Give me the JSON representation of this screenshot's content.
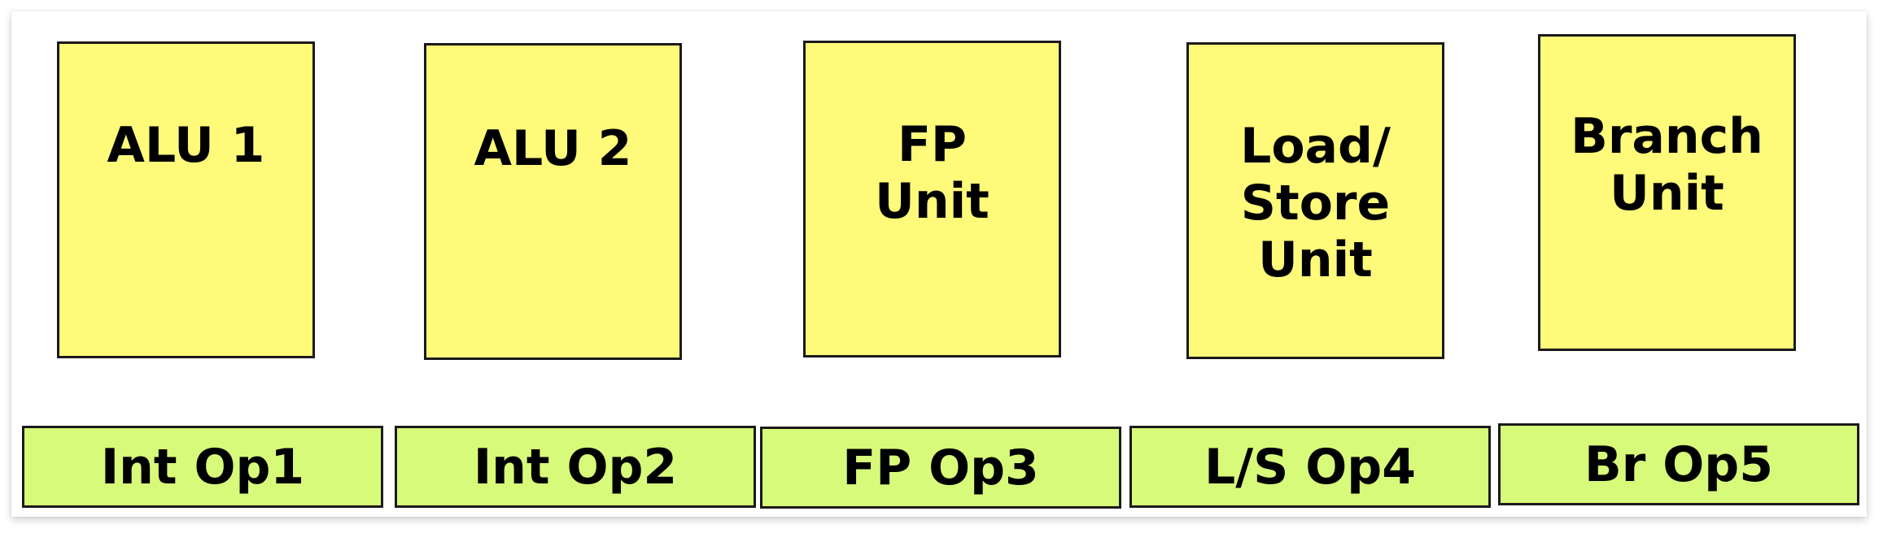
{
  "colors": {
    "unit_fill": "#fffa7a",
    "op_fill": "#d8fa7a",
    "border": "#1a1a1a",
    "text": "#000000"
  },
  "units": [
    {
      "label": "ALU 1"
    },
    {
      "label": "ALU 2"
    },
    {
      "label": "FP\nUnit"
    },
    {
      "label": "Load/\nStore\nUnit"
    },
    {
      "label": "Branch\nUnit"
    }
  ],
  "ops": [
    {
      "label": "Int Op1"
    },
    {
      "label": "Int Op2"
    },
    {
      "label": "FP Op3"
    },
    {
      "label": "L/S Op4"
    },
    {
      "label": "Br Op5"
    }
  ]
}
